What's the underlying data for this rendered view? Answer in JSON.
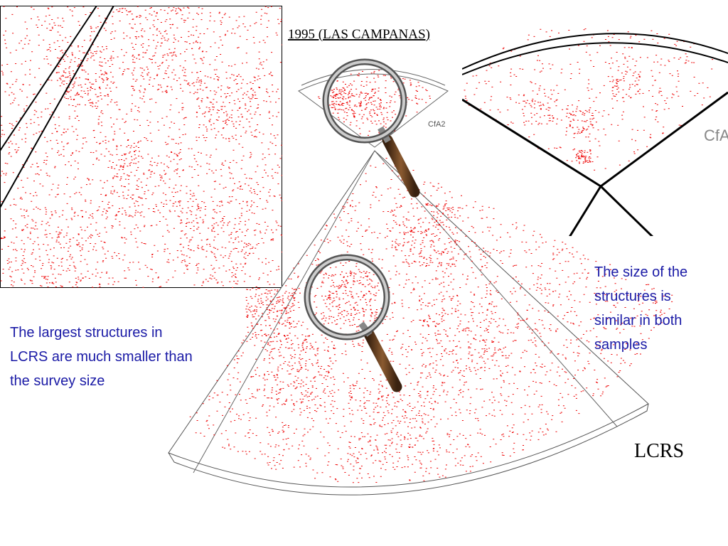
{
  "header": {
    "title": "1995 (LAS CAMPANAS)"
  },
  "labels": {
    "cfa2": "CfA2",
    "lcrs": "LCRS"
  },
  "notes": {
    "left": [
      "The largest structures in",
      "LCRS are much smaller than",
      "the survey size"
    ],
    "right": [
      "The size of the",
      "structures is",
      "similar in both",
      "samples"
    ]
  }
}
